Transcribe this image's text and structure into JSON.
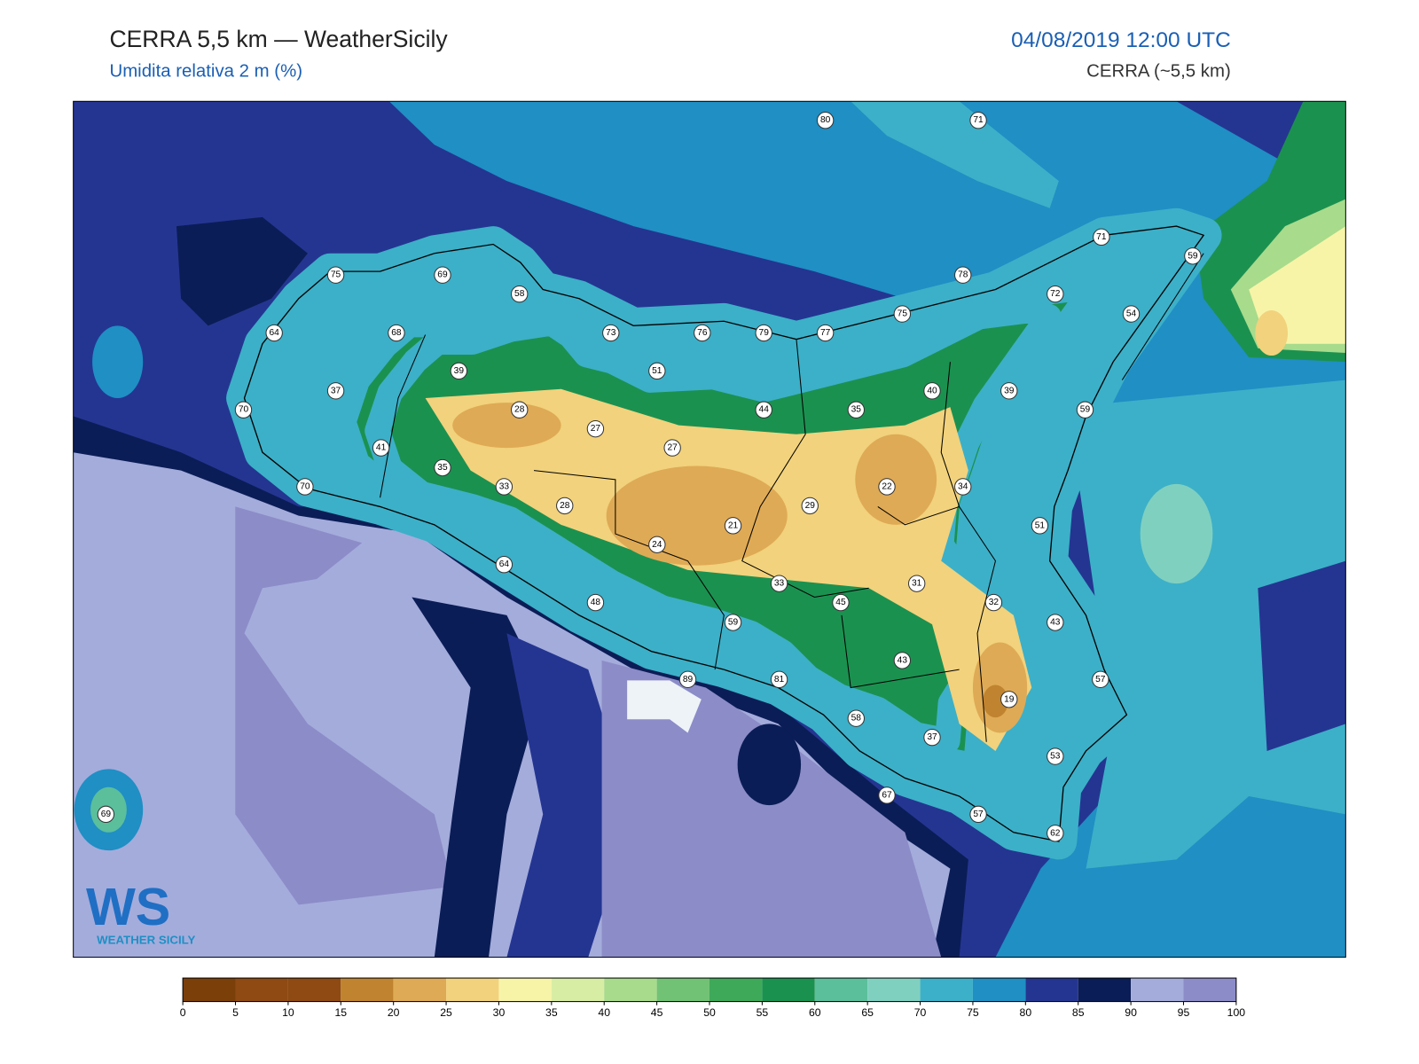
{
  "header": {
    "title": "CERRA 5,5 km — WeatherSicily",
    "subtitle": "Umidita relativa 2 m (%)",
    "datetime": "04/08/2019 12:00 UTC",
    "model": "CERRA (~5,5 km)"
  },
  "logo": {
    "mark": "WS",
    "text": "WEATHER SICILY"
  },
  "stations": [
    80,
    71,
    71,
    59,
    75,
    69,
    58,
    78,
    72,
    54,
    64,
    68,
    73,
    76,
    79,
    77,
    75,
    39,
    51,
    37,
    40,
    39,
    70,
    28,
    27,
    44,
    35,
    59,
    41,
    27,
    35,
    33,
    22,
    34,
    28,
    29,
    21,
    51,
    70,
    24,
    64,
    33,
    31,
    48,
    45,
    32,
    43,
    59,
    43,
    57,
    89,
    81,
    19,
    58,
    37,
    53,
    67,
    57,
    62,
    69
  ],
  "colorbar": {
    "ticks": [
      0,
      5,
      10,
      15,
      20,
      25,
      30,
      35,
      40,
      45,
      50,
      55,
      60,
      65,
      70,
      75,
      80,
      85,
      90,
      95,
      100
    ],
    "colors": [
      "#7b3f0a",
      "#8e4a12",
      "#8e4a12",
      "#c0832f",
      "#dfaa55",
      "#f2d27c",
      "#f7f4a8",
      "#d8eda4",
      "#a8db8c",
      "#72c276",
      "#3fa95a",
      "#1b9150",
      "#5bbf9c",
      "#80d0c0",
      "#3cb0c8",
      "#1f8fc4",
      "#243591",
      "#0b1d56",
      "#a4acdc",
      "#8c8cc8"
    ]
  }
}
